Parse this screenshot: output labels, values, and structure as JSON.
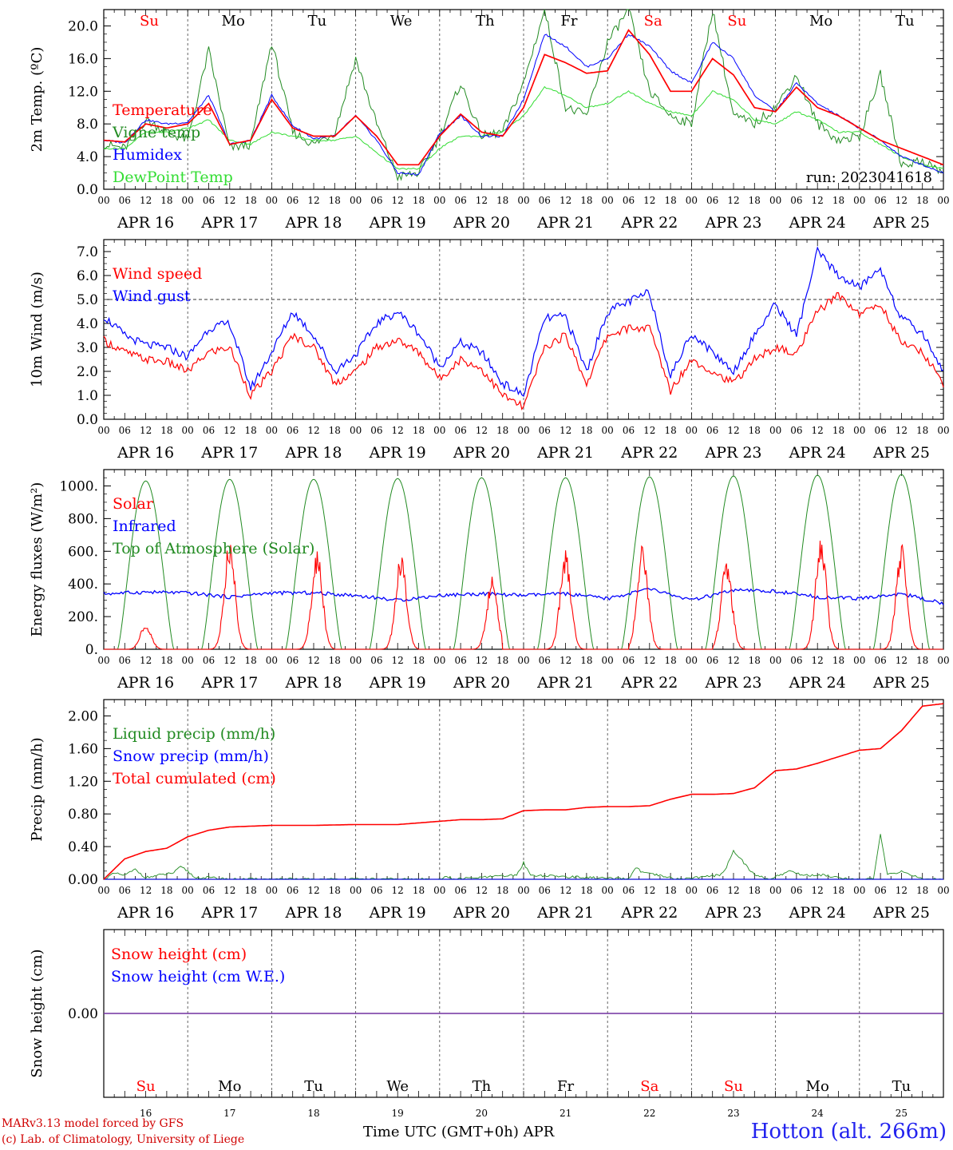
{
  "run_label": "run: 2023041618",
  "footer": {
    "credit_1": "MARv3.13 model forced by GFS",
    "credit_2": "(c) Lab. of Climatology, University of Liege",
    "xlabel": "Time UTC (GMT+0h) APR",
    "station": "Hotton (alt. 266m)"
  },
  "colors": {
    "red": "#ff0000",
    "green": "#228b22",
    "blue": "#0000ff",
    "lightgreen": "#33dd33",
    "purple": "#7030a0",
    "grid": "#555555"
  },
  "hour_labels": [
    "00",
    "06",
    "12",
    "18"
  ],
  "date_labels": [
    "APR 16",
    "APR 17",
    "APR 18",
    "APR 19",
    "APR 20",
    "APR 21",
    "APR 22",
    "APR 23",
    "APR 24",
    "APR 25"
  ],
  "days": [
    {
      "abbr": "Su",
      "weekend": true
    },
    {
      "abbr": "Mo",
      "weekend": false
    },
    {
      "abbr": "Tu",
      "weekend": false
    },
    {
      "abbr": "We",
      "weekend": false
    },
    {
      "abbr": "Th",
      "weekend": false
    },
    {
      "abbr": "Fr",
      "weekend": false
    },
    {
      "abbr": "Sa",
      "weekend": true
    },
    {
      "abbr": "Su",
      "weekend": true
    },
    {
      "abbr": "Mo",
      "weekend": false
    },
    {
      "abbr": "Tu",
      "weekend": false
    }
  ],
  "bottom_day_numbers": [
    "16",
    "17",
    "18",
    "19",
    "20",
    "21",
    "22",
    "23",
    "24",
    "25"
  ],
  "chart_data": [
    {
      "type": "line",
      "ylabel": "2m Temp. (ºC)",
      "ylim": [
        0,
        22
      ],
      "yticks": [
        0,
        4,
        8,
        12,
        16,
        20
      ],
      "ytick_labels": [
        "0.0",
        "4.0",
        "8.0",
        "12.0",
        "16.0",
        "20.0"
      ],
      "xlim": [
        0,
        240
      ],
      "x": [
        0,
        6,
        12,
        18,
        24,
        30,
        36,
        42,
        48,
        54,
        60,
        66,
        72,
        78,
        84,
        90,
        96,
        102,
        108,
        114,
        120,
        126,
        132,
        138,
        144,
        150,
        156,
        162,
        168,
        174,
        180,
        186,
        192,
        198,
        204,
        210,
        216,
        222,
        228,
        234,
        240
      ],
      "series": [
        {
          "name": "Temperature",
          "color": "red",
          "values": [
            6.0,
            5.8,
            8.0,
            7.5,
            8.0,
            10.5,
            5.5,
            6.0,
            11.0,
            7.5,
            6.5,
            6.5,
            9.0,
            6.5,
            3.0,
            3.0,
            6.5,
            9.2,
            7.0,
            6.5,
            10.0,
            16.5,
            15.5,
            14.2,
            14.5,
            19.5,
            16.5,
            12.0,
            12.0,
            16.0,
            14.0,
            10.0,
            9.5,
            12.5,
            10.0,
            9.0,
            7.5,
            6.0,
            5.0,
            4.0,
            3.0
          ]
        },
        {
          "name": "Vigne temp",
          "color": "green",
          "values": [
            5.5,
            5.0,
            8.5,
            7.0,
            6.0,
            17.0,
            5.0,
            5.5,
            18.0,
            7.0,
            5.5,
            7.0,
            16.0,
            8.0,
            1.5,
            2.0,
            6.5,
            13.0,
            6.5,
            7.0,
            13.0,
            22.0,
            10.0,
            9.0,
            18.0,
            22.0,
            12.0,
            9.0,
            8.0,
            22.0,
            9.0,
            8.0,
            10.0,
            14.0,
            8.0,
            6.0,
            6.5,
            14.0,
            3.0,
            3.5,
            2.0
          ]
        },
        {
          "name": "Humidex",
          "color": "blue",
          "values": [
            6.0,
            5.7,
            8.5,
            8.0,
            8.2,
            11.5,
            5.5,
            6.0,
            11.5,
            7.8,
            6.2,
            6.5,
            9.0,
            6.0,
            2.0,
            1.8,
            6.8,
            9.0,
            6.5,
            6.5,
            11.0,
            19.0,
            17.5,
            15.0,
            16.0,
            19.0,
            17.5,
            14.5,
            13.0,
            18.0,
            16.0,
            11.5,
            9.5,
            13.0,
            10.5,
            9.0,
            7.5,
            6.0,
            4.0,
            3.0,
            2.0
          ]
        },
        {
          "name": "DewPoint Temp",
          "color": "lightgreen",
          "values": [
            5.0,
            5.0,
            7.0,
            7.0,
            7.5,
            8.5,
            6.0,
            5.5,
            7.0,
            6.5,
            6.0,
            6.0,
            6.5,
            4.5,
            2.5,
            2.5,
            5.0,
            6.5,
            6.5,
            7.0,
            9.0,
            12.5,
            11.5,
            10.0,
            10.5,
            12.0,
            10.5,
            9.5,
            9.0,
            12.0,
            11.0,
            8.5,
            8.0,
            9.5,
            8.5,
            7.0,
            7.0,
            5.5,
            4.0,
            3.0,
            2.5
          ]
        }
      ],
      "annotation": "run: 2023041618"
    },
    {
      "type": "line",
      "ylabel": "10m Wind (m/s)",
      "ylim": [
        0,
        7.5
      ],
      "yticks": [
        0,
        1,
        2,
        3,
        4,
        5,
        6,
        7
      ],
      "ytick_labels": [
        "0.0",
        "1.0",
        "2.0",
        "3.0",
        "4.0",
        "5.0",
        "6.0",
        "7.0"
      ],
      "reference_line": 5.0,
      "xlim": [
        0,
        240
      ],
      "x": [
        0,
        6,
        12,
        18,
        24,
        30,
        36,
        42,
        48,
        54,
        60,
        66,
        72,
        78,
        84,
        90,
        96,
        102,
        108,
        114,
        120,
        126,
        132,
        138,
        144,
        150,
        156,
        162,
        168,
        174,
        180,
        186,
        192,
        198,
        204,
        210,
        216,
        222,
        228,
        234,
        240
      ],
      "series": [
        {
          "name": "Wind speed",
          "color": "red",
          "values": [
            3.3,
            2.8,
            2.5,
            2.4,
            2.0,
            2.8,
            3.0,
            1.0,
            2.0,
            3.5,
            3.0,
            1.5,
            2.0,
            3.0,
            3.3,
            2.8,
            1.7,
            2.5,
            2.1,
            1.0,
            0.5,
            3.0,
            3.5,
            1.5,
            3.5,
            3.8,
            3.8,
            1.2,
            2.5,
            2.0,
            1.5,
            2.5,
            3.0,
            2.7,
            4.5,
            5.2,
            4.4,
            4.8,
            3.2,
            2.8,
            1.5
          ]
        },
        {
          "name": "Wind gust",
          "color": "blue",
          "values": [
            4.3,
            3.5,
            3.1,
            3.0,
            2.6,
            3.8,
            4.0,
            1.3,
            2.8,
            4.5,
            3.5,
            2.0,
            2.7,
            4.0,
            4.5,
            3.6,
            2.2,
            3.2,
            2.8,
            1.5,
            1.0,
            4.2,
            4.3,
            2.0,
            4.5,
            4.9,
            5.3,
            1.8,
            3.6,
            2.8,
            2.0,
            3.5,
            4.8,
            3.5,
            7.0,
            6.0,
            5.5,
            6.3,
            4.2,
            3.6,
            2.0
          ]
        }
      ]
    },
    {
      "type": "line",
      "ylabel": "Energy fluxes (W/m²)",
      "ylim": [
        0,
        1100
      ],
      "yticks": [
        0,
        200,
        400,
        600,
        800,
        1000
      ],
      "ytick_labels": [
        "0.",
        "200.",
        "400.",
        "600.",
        "800.",
        "1000."
      ],
      "xlim": [
        0,
        240
      ],
      "daily_peaks": {
        "top_of_atmosphere": [
          1030,
          1040,
          1040,
          1045,
          1050,
          1050,
          1055,
          1060,
          1065,
          1070
        ],
        "solar": [
          160,
          700,
          620,
          600,
          450,
          610,
          660,
          560,
          700,
          660
        ],
        "solar_hour": [
          12,
          12,
          13,
          13,
          15,
          12,
          10,
          10,
          13,
          12
        ]
      },
      "series": [
        {
          "name": "Solar",
          "color": "red"
        },
        {
          "name": "Infrared",
          "color": "blue",
          "x": [
            0,
            12,
            24,
            36,
            48,
            60,
            72,
            84,
            96,
            108,
            120,
            132,
            144,
            156,
            168,
            180,
            192,
            204,
            216,
            228,
            240
          ],
          "values": [
            340,
            350,
            345,
            320,
            345,
            345,
            330,
            300,
            330,
            340,
            330,
            340,
            310,
            370,
            300,
            360,
            355,
            320,
            310,
            340,
            280
          ]
        },
        {
          "name": "Top of Atmosphere (Solar)",
          "color": "green"
        }
      ]
    },
    {
      "type": "line",
      "ylabel": "Precip (mm/h)",
      "ylim": [
        0,
        2.2
      ],
      "yticks": [
        0,
        0.4,
        0.8,
        1.2,
        1.6,
        2.0
      ],
      "ytick_labels": [
        "0.00",
        "0.40",
        "0.80",
        "1.20",
        "1.60",
        "2.00"
      ],
      "xlim": [
        0,
        240
      ],
      "series": [
        {
          "name": "Liquid precip (mm/h)",
          "color": "green",
          "x": [
            0,
            3,
            6,
            9,
            12,
            20,
            22,
            24,
            26,
            30,
            36,
            48,
            96,
            98,
            100,
            118,
            120,
            122,
            150,
            152,
            154,
            158,
            164,
            176,
            178,
            180,
            186,
            190,
            196,
            200,
            206,
            214,
            220,
            222,
            224,
            228,
            234,
            240
          ],
          "values": [
            0,
            0.07,
            0.05,
            0.12,
            0.02,
            0.08,
            0.15,
            0.1,
            0.02,
            0.02,
            0.0,
            0.0,
            0.0,
            0.03,
            0.0,
            0.05,
            0.2,
            0.05,
            0.0,
            0.15,
            0.08,
            0.05,
            0.0,
            0.05,
            0.15,
            0.35,
            0.05,
            0.0,
            0.1,
            0.05,
            0.05,
            0.0,
            0.0,
            0.55,
            0.05,
            0.1,
            0.0,
            0.0
          ]
        },
        {
          "name": "Snow precip (mm/h)",
          "color": "blue",
          "x": [
            0,
            240
          ],
          "values": [
            0,
            0
          ]
        },
        {
          "name": "Total cumulated (cm)",
          "color": "red",
          "x": [
            0,
            6,
            12,
            18,
            24,
            30,
            36,
            42,
            48,
            60,
            72,
            84,
            96,
            102,
            108,
            114,
            120,
            126,
            132,
            138,
            144,
            150,
            156,
            162,
            168,
            174,
            180,
            186,
            192,
            198,
            204,
            210,
            216,
            222,
            228,
            234,
            240
          ],
          "values": [
            0,
            0.25,
            0.34,
            0.38,
            0.52,
            0.6,
            0.64,
            0.65,
            0.66,
            0.66,
            0.67,
            0.67,
            0.71,
            0.73,
            0.73,
            0.74,
            0.84,
            0.85,
            0.85,
            0.88,
            0.89,
            0.89,
            0.9,
            0.98,
            1.04,
            1.04,
            1.05,
            1.12,
            1.33,
            1.35,
            1.42,
            1.5,
            1.58,
            1.6,
            1.82,
            2.12,
            2.15
          ]
        }
      ]
    },
    {
      "type": "line",
      "ylabel": "Snow height (cm)",
      "yticks": [
        0
      ],
      "ytick_labels": [
        "0.00"
      ],
      "xlim": [
        0,
        240
      ],
      "series": [
        {
          "name": "Snow height (cm)",
          "color": "red",
          "x": [
            0,
            240
          ],
          "values": [
            0,
            0
          ]
        },
        {
          "name": "Snow height (cm W.E.)",
          "color": "blue",
          "x": [
            0,
            240
          ],
          "values": [
            0,
            0
          ]
        }
      ]
    }
  ]
}
